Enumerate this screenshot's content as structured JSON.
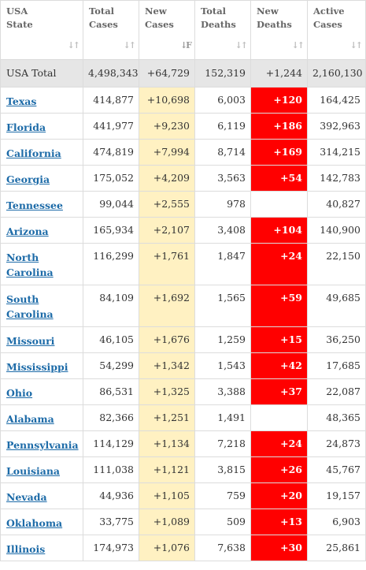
{
  "headers": [
    {
      "line1": "USA",
      "line2": "State"
    },
    {
      "line1": "Total",
      "line2": "Cases"
    },
    {
      "line1": "New",
      "line2": "Cases"
    },
    {
      "line1": "Total",
      "line2": "Deaths"
    },
    {
      "line1": "New",
      "line2": "Deaths"
    },
    {
      "line1": "Active",
      "line2": "Cases"
    }
  ],
  "total": {
    "state": "USA Total",
    "total_cases": "4,498,343",
    "new_cases": "+64,729",
    "total_deaths": "152,319",
    "new_deaths": "+1,244",
    "active_cases": "2,160,130"
  },
  "rows": [
    {
      "state": "Texas",
      "total_cases": "414,877",
      "new_cases": "+10,698",
      "total_deaths": "6,003",
      "new_deaths": "+120",
      "active_cases": "164,425"
    },
    {
      "state": "Florida",
      "total_cases": "441,977",
      "new_cases": "+9,230",
      "total_deaths": "6,119",
      "new_deaths": "+186",
      "active_cases": "392,963"
    },
    {
      "state": "California",
      "total_cases": "474,819",
      "new_cases": "+7,994",
      "total_deaths": "8,714",
      "new_deaths": "+169",
      "active_cases": "314,215"
    },
    {
      "state": "Georgia",
      "total_cases": "175,052",
      "new_cases": "+4,209",
      "total_deaths": "3,563",
      "new_deaths": "+54",
      "active_cases": "142,783"
    },
    {
      "state": "Tennessee",
      "total_cases": "99,044",
      "new_cases": "+2,555",
      "total_deaths": "978",
      "new_deaths": "",
      "active_cases": "40,827"
    },
    {
      "state": "Arizona",
      "total_cases": "165,934",
      "new_cases": "+2,107",
      "total_deaths": "3,408",
      "new_deaths": "+104",
      "active_cases": "140,900"
    },
    {
      "state": "North Carolina",
      "total_cases": "116,299",
      "new_cases": "+1,761",
      "total_deaths": "1,847",
      "new_deaths": "+24",
      "active_cases": "22,150"
    },
    {
      "state": "South Carolina",
      "total_cases": "84,109",
      "new_cases": "+1,692",
      "total_deaths": "1,565",
      "new_deaths": "+59",
      "active_cases": "49,685"
    },
    {
      "state": "Missouri",
      "total_cases": "46,105",
      "new_cases": "+1,676",
      "total_deaths": "1,259",
      "new_deaths": "+15",
      "active_cases": "36,250"
    },
    {
      "state": "Mississippi",
      "total_cases": "54,299",
      "new_cases": "+1,342",
      "total_deaths": "1,543",
      "new_deaths": "+42",
      "active_cases": "17,685"
    },
    {
      "state": "Ohio",
      "total_cases": "86,531",
      "new_cases": "+1,325",
      "total_deaths": "3,388",
      "new_deaths": "+37",
      "active_cases": "22,087"
    },
    {
      "state": "Alabama",
      "total_cases": "82,366",
      "new_cases": "+1,251",
      "total_deaths": "1,491",
      "new_deaths": "",
      "active_cases": "48,365"
    },
    {
      "state": "Pennsylvania",
      "total_cases": "114,129",
      "new_cases": "+1,134",
      "total_deaths": "7,218",
      "new_deaths": "+24",
      "active_cases": "24,873"
    },
    {
      "state": "Louisiana",
      "total_cases": "111,038",
      "new_cases": "+1,121",
      "total_deaths": "3,815",
      "new_deaths": "+26",
      "active_cases": "45,767"
    },
    {
      "state": "Nevada",
      "total_cases": "44,936",
      "new_cases": "+1,105",
      "total_deaths": "759",
      "new_deaths": "+20",
      "active_cases": "19,157"
    },
    {
      "state": "Oklahoma",
      "total_cases": "33,775",
      "new_cases": "+1,089",
      "total_deaths": "509",
      "new_deaths": "+13",
      "active_cases": "6,903"
    },
    {
      "state": "Illinois",
      "total_cases": "174,973",
      "new_cases": "+1,076",
      "total_deaths": "7,638",
      "new_deaths": "+30",
      "active_cases": "25,861"
    }
  ],
  "colors": {
    "new_cases_bg": "#fff1c2",
    "new_deaths_bg": "#ff0000",
    "link": "#1d6ba8",
    "total_row_bg": "#e6e6e6"
  },
  "sort": {
    "column": "New Cases",
    "direction": "descending"
  }
}
